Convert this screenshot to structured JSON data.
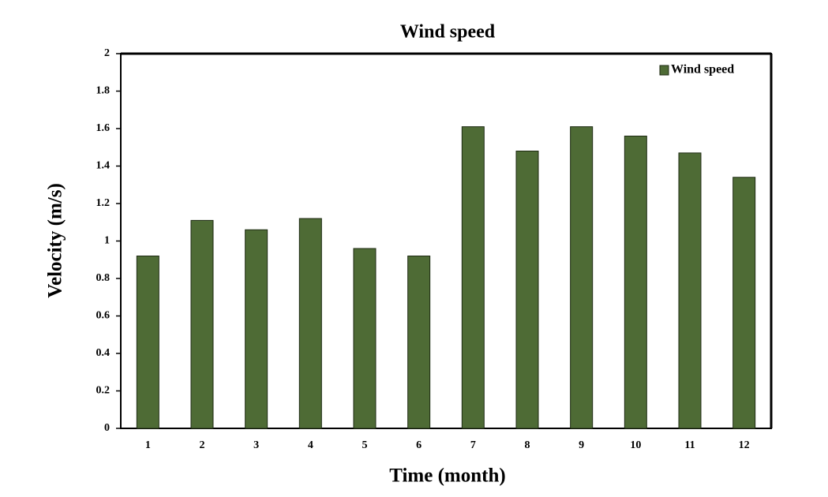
{
  "chart_data": {
    "type": "bar",
    "title": "Wind speed",
    "x_label": "Time (month)",
    "y_label": "Velocity (m/s)",
    "categories": [
      "1",
      "2",
      "3",
      "4",
      "5",
      "6",
      "7",
      "8",
      "9",
      "10",
      "11",
      "12"
    ],
    "series": [
      {
        "name": "Wind speed",
        "color": "#4e6b35",
        "values": [
          0.92,
          1.11,
          1.06,
          1.12,
          0.96,
          0.92,
          1.61,
          1.48,
          1.61,
          1.56,
          1.47,
          1.34
        ]
      }
    ],
    "ylim": [
      0,
      2
    ],
    "yticks": [
      0,
      0.2,
      0.4,
      0.6,
      0.8,
      1,
      1.2,
      1.4,
      1.6,
      1.8,
      2
    ],
    "grid": false,
    "legend": "upper-right"
  }
}
